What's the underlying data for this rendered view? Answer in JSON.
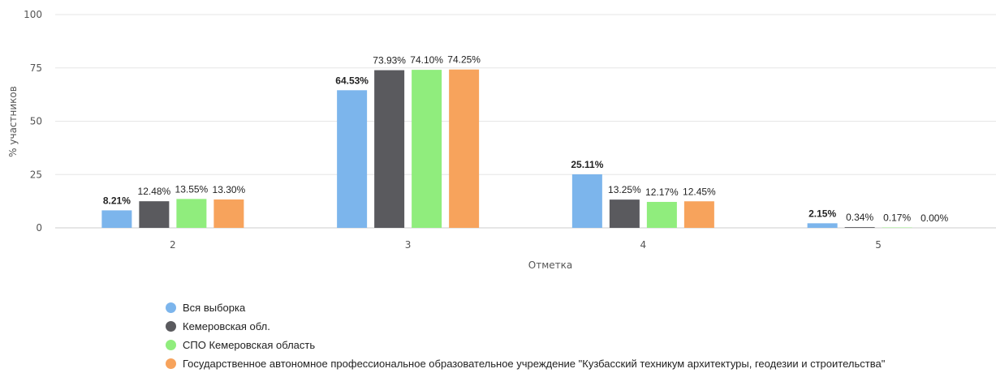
{
  "chart_data": {
    "type": "bar",
    "title": "",
    "xlabel": "Отметка",
    "ylabel": "% участников",
    "ylim": [
      0,
      100
    ],
    "yticks": [
      0,
      25,
      50,
      75,
      100
    ],
    "categories": [
      "2",
      "3",
      "4",
      "5"
    ],
    "grid": true,
    "legend_position": "bottom-left",
    "series": [
      {
        "name": "Вся выборка",
        "color": "#7cb5ec",
        "values": [
          8.21,
          64.53,
          25.11,
          2.15
        ],
        "labels": [
          "8.21%",
          "64.53%",
          "25.11%",
          "2.15%"
        ]
      },
      {
        "name": "Кемеровская обл.",
        "color": "#5a5a5e",
        "values": [
          12.48,
          73.93,
          13.25,
          0.34
        ],
        "labels": [
          "12.48%",
          "73.93%",
          "13.25%",
          "0.34%"
        ]
      },
      {
        "name": "СПО Кемеровская область",
        "color": "#90ed7d",
        "values": [
          13.55,
          74.1,
          12.17,
          0.17
        ],
        "labels": [
          "13.55%",
          "74.10%",
          "12.17%",
          "0.17%"
        ]
      },
      {
        "name": "Государственное автономное профессиональное образовательное учреждение \"Кузбасский техникум архитектуры, геодезии и строительства\"",
        "color": "#f7a35c",
        "values": [
          13.3,
          74.25,
          12.45,
          0.0
        ],
        "labels": [
          "13.30%",
          "74.25%",
          "12.45%",
          "0.00%"
        ]
      }
    ]
  }
}
